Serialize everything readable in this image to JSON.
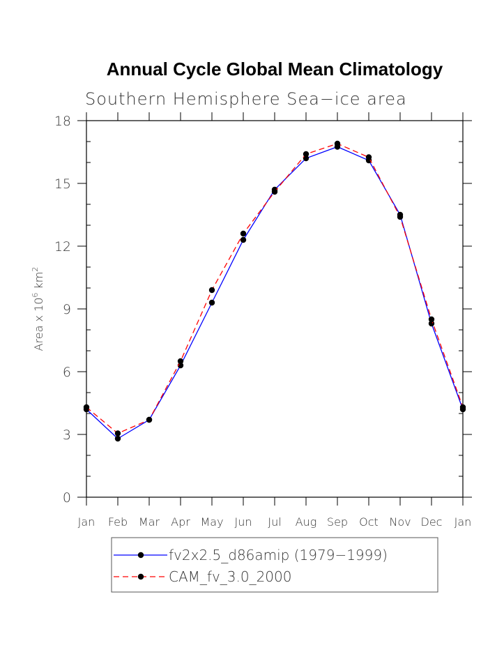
{
  "chart_data": {
    "type": "line",
    "title": "Annual Cycle Global Mean Climatology",
    "subtitle": "Southern Hemisphere Sea−ice area",
    "ylabel_main": "Area x 10",
    "ylabel_sup1": "6",
    "ylabel_unit": " km",
    "ylabel_sup2": "2",
    "categories": [
      "Jan",
      "Feb",
      "Mar",
      "Apr",
      "May",
      "Jun",
      "Jul",
      "Aug",
      "Sep",
      "Oct",
      "Nov",
      "Dec",
      "Jan"
    ],
    "ylim": [
      0,
      18
    ],
    "yticks": [
      0,
      3,
      6,
      9,
      12,
      15,
      18
    ],
    "grid": false,
    "legend_position": "bottom",
    "series": [
      {
        "name": "fv2x2.5_d86amip (1979−1999)",
        "color": "#0000ff",
        "dash": "solid",
        "values": [
          4.2,
          2.8,
          3.7,
          6.3,
          9.3,
          12.3,
          14.7,
          16.2,
          16.75,
          16.1,
          13.5,
          8.3,
          4.2
        ]
      },
      {
        "name": "CAM_fv_3.0_2000",
        "color": "#ff0000",
        "dash": "dashed",
        "values": [
          4.3,
          3.05,
          3.7,
          6.5,
          9.9,
          12.6,
          14.6,
          16.4,
          16.9,
          16.25,
          13.4,
          8.5,
          4.3
        ]
      }
    ]
  }
}
